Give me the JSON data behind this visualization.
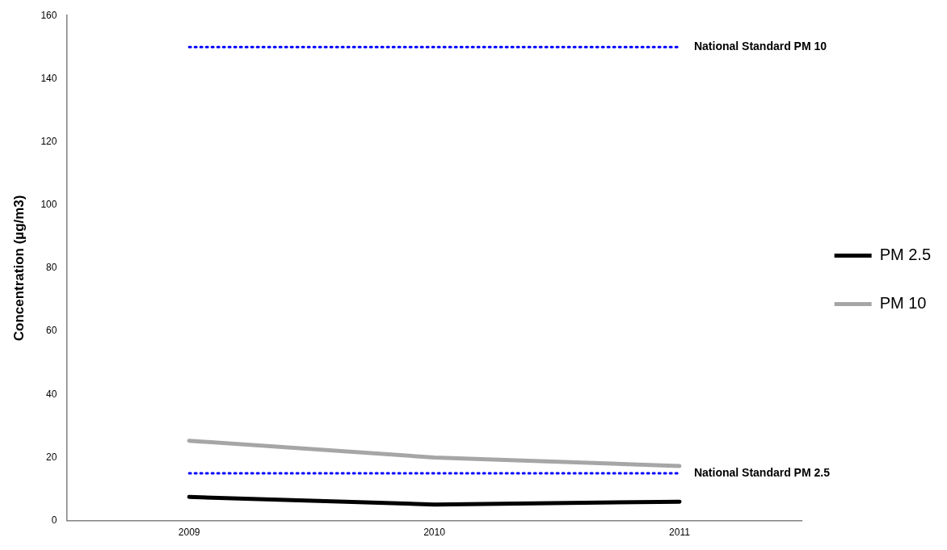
{
  "chart_data": {
    "type": "line",
    "ylabel": "Concentration (µg/m3)",
    "categories": [
      "2009",
      "2010",
      "2011"
    ],
    "series": [
      {
        "name": "PM 2.5",
        "color": "#000000",
        "values": [
          7.5,
          5.1,
          6.0
        ]
      },
      {
        "name": "PM 10",
        "color": "#a6a6a6",
        "values": [
          25.3,
          20.0,
          17.3
        ]
      }
    ],
    "ylim": [
      0,
      160
    ],
    "yticks": [
      0,
      20,
      40,
      60,
      80,
      100,
      120,
      140,
      160
    ],
    "grid": false,
    "legend": "right",
    "marker": "none",
    "line_style": "solid",
    "ref_lines": [
      {
        "axis": "y",
        "value": 150,
        "label": "National Standard PM 10",
        "color": "#0000ff",
        "line_style": "dotted"
      },
      {
        "axis": "y",
        "value": 15,
        "label": "National Standard PM 2.5",
        "color": "#0000ff",
        "line_style": "dotted"
      }
    ]
  }
}
